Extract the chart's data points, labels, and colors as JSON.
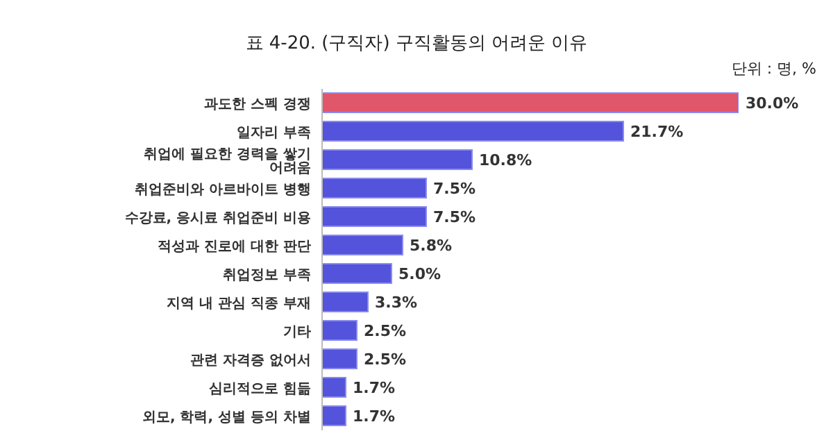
{
  "chart_data": {
    "type": "bar",
    "orientation": "horizontal",
    "title": "표 4-20. (구직자) 구직활동의 어려운 이유",
    "annotations": [
      "단위 : 명, %"
    ],
    "categories": [
      "과도한 스펙 경쟁",
      "일자리 부족",
      "취업에 필요한 경력을 쌓기 어려움",
      "취업준비와 아르바이트 병행",
      "수강료, 응시료 취업준비 비용",
      "적성과 진로에 대한 판단",
      "취업정보 부족",
      "지역 내 관심 직종 부재",
      "기타",
      "관련 자격증 없어서",
      "심리적으로 힘듦",
      "외모, 학력, 성별 등의 차별"
    ],
    "values": [
      30.0,
      21.7,
      10.8,
      7.5,
      7.5,
      5.8,
      5.0,
      3.3,
      2.5,
      2.5,
      1.7,
      1.7
    ],
    "colors": [
      "#e0566a",
      "#5353dc",
      "#5353dc",
      "#5353dc",
      "#5353dc",
      "#5353dc",
      "#5353dc",
      "#5353dc",
      "#5353dc",
      "#5353dc",
      "#5353dc",
      "#5353dc"
    ],
    "value_labels": [
      "30.0%",
      "21.7%",
      "10.8%",
      "7.5%",
      "7.5%",
      "5.8%",
      "5.0%",
      "3.3%",
      "2.5%",
      "2.5%",
      "1.7%",
      "1.7%"
    ]
  }
}
